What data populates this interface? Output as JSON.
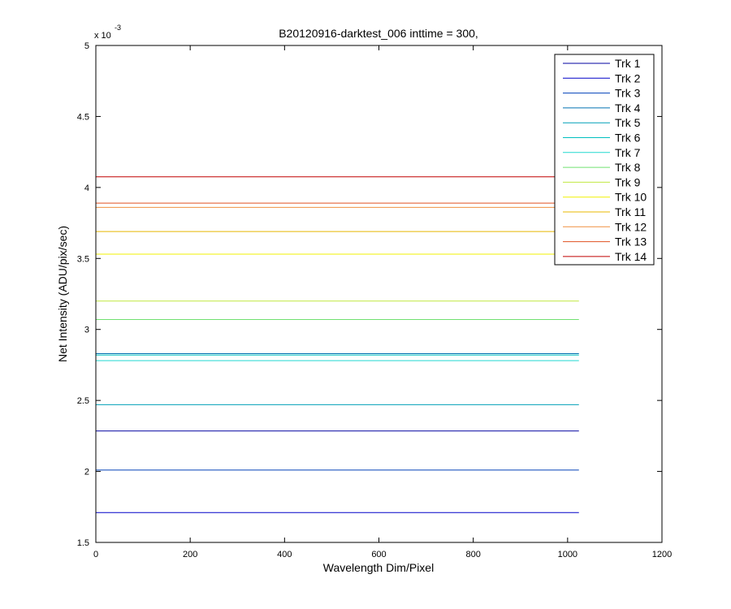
{
  "chart_data": {
    "type": "line",
    "title": "B20120916-darktest_006 inttime = 300,",
    "xlabel": "Wavelength Dim/Pixel",
    "ylabel": "Net Intensity (ADU/pix/sec)",
    "xlim": [
      0,
      1200
    ],
    "ylim": [
      1.5,
      5
    ],
    "y_multiplier_label": "x 10",
    "y_multiplier_exponent": "-3",
    "xticks": [
      0,
      200,
      400,
      600,
      800,
      1000,
      1200
    ],
    "xtick_labels": [
      "0",
      "200",
      "400",
      "600",
      "800",
      "1000",
      "1200"
    ],
    "yticks": [
      1.5,
      2,
      2.5,
      3,
      3.5,
      4,
      4.5,
      5
    ],
    "ytick_labels": [
      "1.5",
      "2",
      "2.5",
      "3",
      "3.5",
      "4",
      "4.5",
      "5"
    ],
    "grid": false,
    "legend_position": "top-right",
    "x": [
      0,
      1024
    ],
    "series": [
      {
        "name": "Trk 1",
        "color": "#0000A0",
        "values": [
          2.285,
          2.285
        ]
      },
      {
        "name": "Trk 2",
        "color": "#0000C8",
        "values": [
          1.71,
          1.71
        ]
      },
      {
        "name": "Trk 3",
        "color": "#0040B8",
        "values": [
          2.01,
          2.01
        ]
      },
      {
        "name": "Trk 4",
        "color": "#0070B0",
        "values": [
          2.83,
          2.83
        ]
      },
      {
        "name": "Trk 5",
        "color": "#00A0B8",
        "values": [
          2.47,
          2.47
        ]
      },
      {
        "name": "Trk 6",
        "color": "#00C0C0",
        "values": [
          2.82,
          2.82
        ]
      },
      {
        "name": "Trk 7",
        "color": "#20D8D0",
        "values": [
          2.78,
          2.78
        ]
      },
      {
        "name": "Trk 8",
        "color": "#70E070",
        "values": [
          3.07,
          3.07
        ]
      },
      {
        "name": "Trk 9",
        "color": "#C0E840",
        "values": [
          3.2,
          3.2
        ]
      },
      {
        "name": "Trk 10",
        "color": "#F0F000",
        "values": [
          3.53,
          3.53
        ]
      },
      {
        "name": "Trk 11",
        "color": "#E8B800",
        "values": [
          3.69,
          3.69
        ]
      },
      {
        "name": "Trk 12",
        "color": "#F09040",
        "values": [
          3.86,
          3.86
        ]
      },
      {
        "name": "Trk 13",
        "color": "#E05020",
        "values": [
          3.89,
          3.89
        ]
      },
      {
        "name": "Trk 14",
        "color": "#C00000",
        "values": [
          4.075,
          4.075
        ]
      }
    ]
  }
}
